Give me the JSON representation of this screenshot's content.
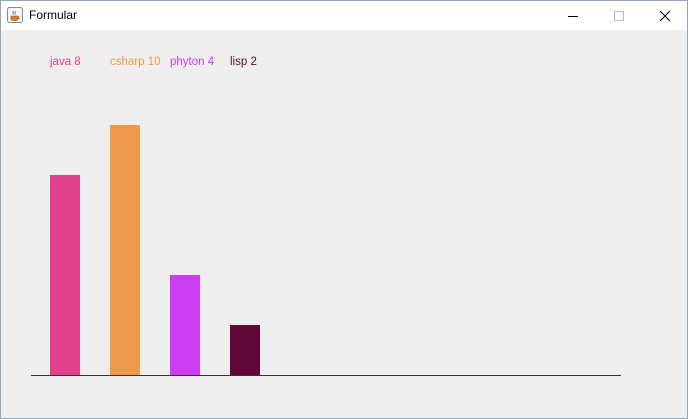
{
  "window": {
    "title": "Formular",
    "icon": "java-cup-icon",
    "controls": {
      "minimize_icon": "minimize-icon",
      "maximize_icon": "maximize-icon",
      "close_icon": "close-icon"
    }
  },
  "chart_data": {
    "type": "bar",
    "title": "",
    "xlabel": "",
    "ylabel": "",
    "categories": [
      "java",
      "csharp",
      "phyton",
      "lisp"
    ],
    "values": [
      8,
      10,
      4,
      2
    ],
    "labels": [
      "java 8",
      "csharp 10",
      "phyton 4",
      "lisp 2"
    ],
    "colors": [
      "#e0418a",
      "#ee9a4d",
      "#cc3df0",
      "#620738"
    ],
    "ylim": [
      0,
      10
    ],
    "grid": false,
    "legend_placement": "top-left"
  },
  "colors": {
    "background": "#eeeeee",
    "axis": "#333333"
  }
}
